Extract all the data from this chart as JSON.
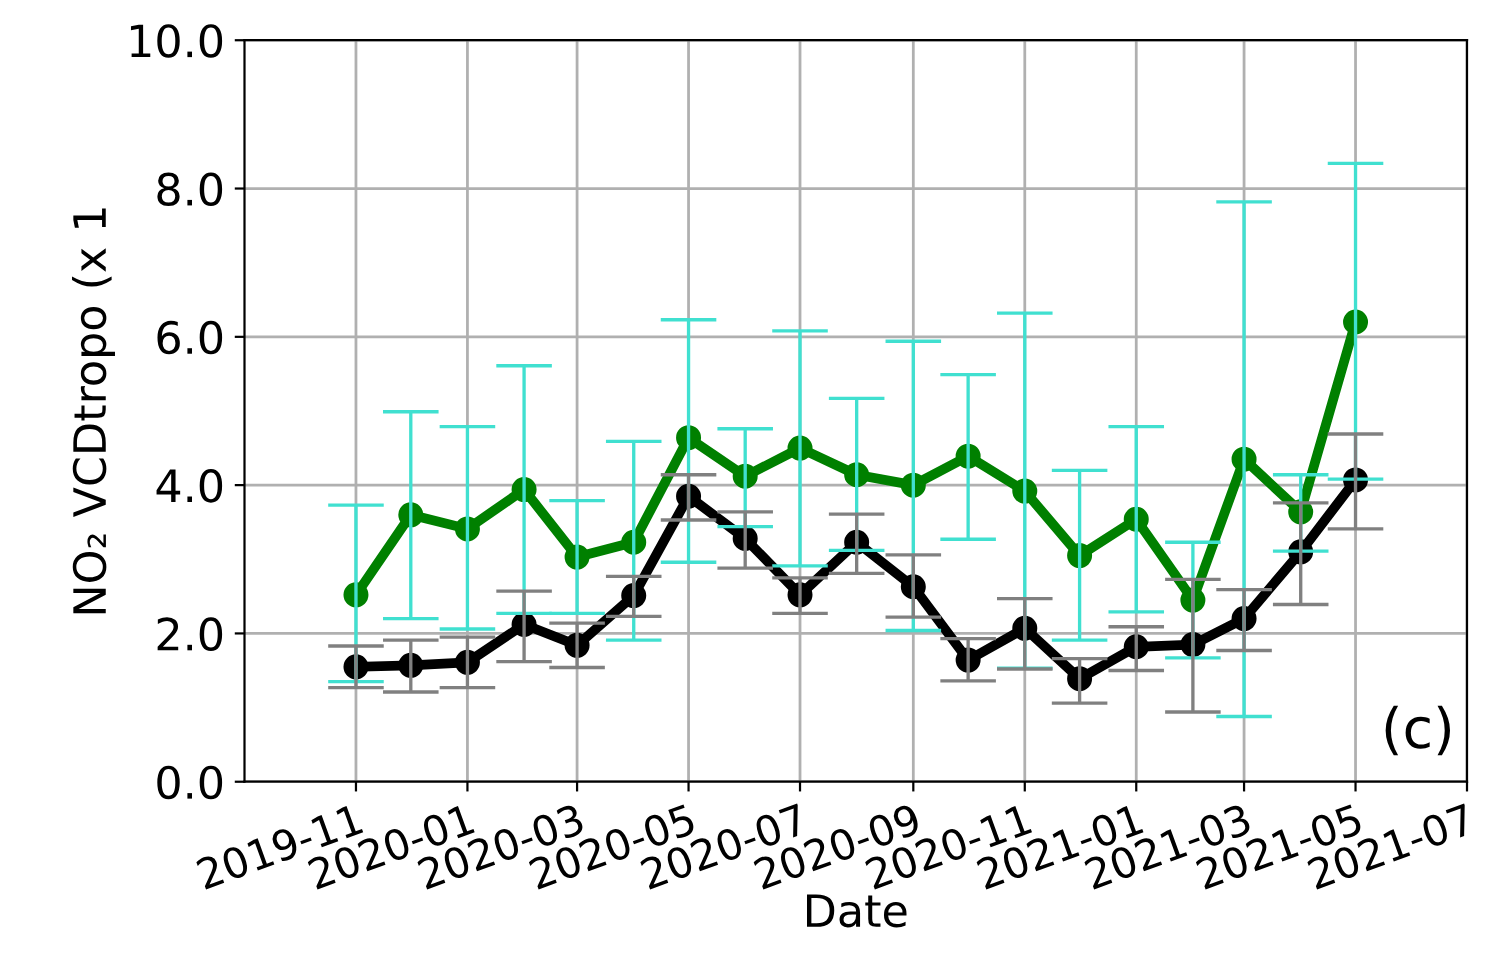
{
  "chart_data": {
    "type": "line",
    "xlabel": "Date",
    "ylabel": "NO₂ VCDtropo (x 1",
    "x": [
      "2019-11",
      "2019-12",
      "2020-01",
      "2020-02",
      "2020-03",
      "2020-04",
      "2020-05",
      "2020-06",
      "2020-07",
      "2020-08",
      "2020-09",
      "2020-10",
      "2020-11",
      "2020-12",
      "2021-01",
      "2021-02",
      "2021-03",
      "2021-04",
      "2021-05"
    ],
    "series": [
      {
        "color": "#008000",
        "values": [
          2.52,
          3.6,
          3.41,
          3.94,
          3.03,
          3.23,
          4.64,
          4.12,
          4.5,
          4.14,
          4.0,
          4.39,
          3.92,
          3.05,
          3.54,
          2.45,
          4.35,
          3.64,
          6.2
        ],
        "errors": [
          [
            1.35,
            3.73
          ],
          [
            2.2,
            4.99
          ],
          [
            2.06,
            4.79
          ],
          [
            2.27,
            5.61
          ],
          [
            2.27,
            3.79
          ],
          [
            1.91,
            4.59
          ],
          [
            2.96,
            6.23
          ],
          [
            3.44,
            4.76
          ],
          [
            2.91,
            6.08
          ],
          [
            3.12,
            5.17
          ],
          [
            2.04,
            5.94
          ],
          [
            3.27,
            5.49
          ],
          [
            1.53,
            6.32
          ],
          [
            1.91,
            4.2
          ],
          [
            2.29,
            4.79
          ],
          [
            1.67,
            3.23
          ],
          [
            0.88,
            7.82
          ],
          [
            3.11,
            4.14
          ],
          [
            4.08,
            8.34
          ]
        ]
      },
      {
        "color": "#000000",
        "values": [
          1.55,
          1.57,
          1.61,
          2.12,
          1.84,
          2.51,
          3.85,
          3.28,
          2.52,
          3.23,
          2.63,
          1.64,
          2.07,
          1.39,
          1.82,
          1.85,
          2.2,
          3.1,
          4.07
        ],
        "errors": [
          [
            1.27,
            1.83
          ],
          [
            1.21,
            1.91
          ],
          [
            1.27,
            1.95
          ],
          [
            1.62,
            2.57
          ],
          [
            1.54,
            2.14
          ],
          [
            2.23,
            2.77
          ],
          [
            3.53,
            4.14
          ],
          [
            2.88,
            3.64
          ],
          [
            2.27,
            2.75
          ],
          [
            2.81,
            3.61
          ],
          [
            2.22,
            3.06
          ],
          [
            1.36,
            1.93
          ],
          [
            1.52,
            2.47
          ],
          [
            1.06,
            1.66
          ],
          [
            1.5,
            2.09
          ],
          [
            0.94,
            2.73
          ],
          [
            1.77,
            2.59
          ],
          [
            2.39,
            3.76
          ],
          [
            3.41,
            4.69
          ]
        ]
      }
    ],
    "xlim": [
      "2019-09-01",
      "2021-07-01"
    ],
    "xticks": [
      "2019-11",
      "2020-01",
      "2020-03",
      "2020-05",
      "2020-07",
      "2020-09",
      "2020-11",
      "2021-01",
      "2021-03",
      "2021-05",
      "2021-07"
    ],
    "ylim": [
      0,
      10
    ],
    "yticks": [
      {
        "value": 0,
        "label": "0.0"
      },
      {
        "value": 2,
        "label": "2.0"
      },
      {
        "value": 4,
        "label": "4.0"
      },
      {
        "value": 6,
        "label": "6.0"
      },
      {
        "value": 8,
        "label": "8.0"
      },
      {
        "value": 10,
        "label": "10.0"
      }
    ],
    "grid": true,
    "marker": "circle",
    "line_style": "solid",
    "annotations": [
      "(c)"
    ]
  }
}
